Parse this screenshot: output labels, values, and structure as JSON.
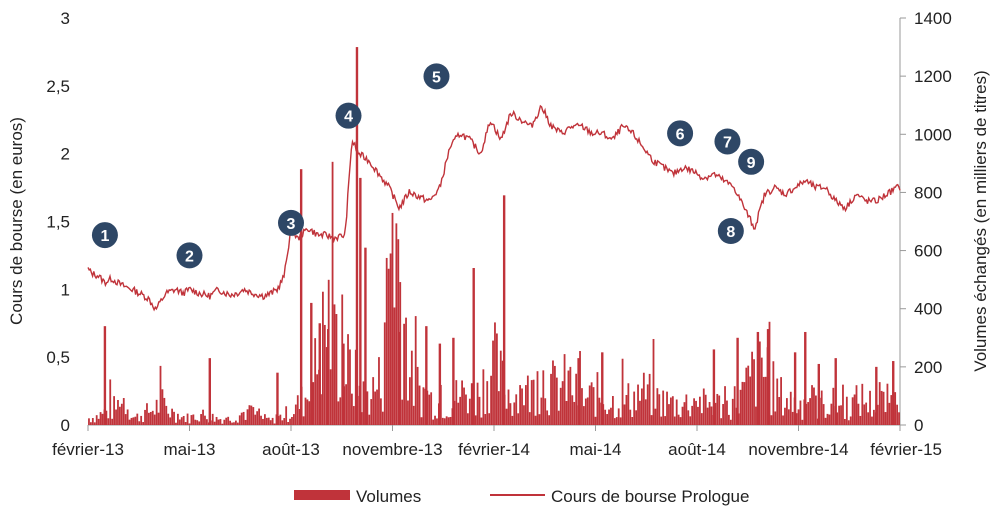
{
  "chart_data": {
    "type": "bar+line",
    "colors": {
      "series": "#c0333a",
      "marker": "#2e4766",
      "axis": "#999999"
    },
    "left_axis": {
      "label": "Cours de bourse (en euros)",
      "ylim": [
        0,
        3
      ],
      "ticks": [
        "0",
        "0,5",
        "1",
        "1,5",
        "2",
        "2,5",
        "3"
      ]
    },
    "right_axis": {
      "label": "Volumes échangés (en milliers de titres)",
      "ylim": [
        0,
        1400
      ],
      "ticks": [
        "0",
        "200",
        "400",
        "600",
        "800",
        "1000",
        "1200",
        "1400"
      ]
    },
    "x_axis": {
      "ticks": [
        "février-13",
        "mai-13",
        "août-13",
        "novembre-13",
        "février-14",
        "mai-14",
        "août-14",
        "novembre-14",
        "février-15"
      ]
    },
    "legend": {
      "placement": "bottom",
      "items": [
        {
          "name": "Volumes",
          "kind": "bar"
        },
        {
          "name": "Cours de bourse Prologue",
          "kind": "line"
        }
      ]
    },
    "price_series": {
      "name": "Cours de bourse Prologue",
      "x": [
        0,
        0.1,
        0.3,
        0.5,
        0.7,
        1.0,
        1.3,
        1.6,
        1.8,
        2.0,
        2.3,
        2.6,
        2.8,
        3.0,
        3.3,
        3.6,
        3.85,
        4.0,
        4.2,
        4.4,
        4.6,
        4.9,
        5.2,
        5.4,
        5.6,
        5.8,
        6.0,
        6.2,
        6.5,
        6.8,
        7.0,
        7.3,
        7.6,
        7.8,
        8.0,
        8.3,
        8.6,
        8.9,
        9.2,
        9.5,
        9.8,
        10.1,
        10.4,
        10.7,
        11.0,
        11.3,
        11.6,
        11.9,
        12.2,
        12.5,
        12.8,
        13.1,
        13.4,
        13.7,
        14.0,
        14.3,
        14.6,
        14.9,
        15.2,
        15.5,
        15.8,
        16.1,
        16.4,
        16.7,
        17.0,
        17.3,
        17.6,
        17.9,
        18.2,
        18.5,
        18.8,
        19.1,
        19.4,
        19.7,
        20.0,
        20.3,
        20.6,
        20.9,
        21.2,
        21.5,
        21.8,
        22.1,
        22.4,
        22.7,
        23.0,
        23.3,
        23.6,
        23.9,
        24.0
      ],
      "values": [
        1.15,
        1.12,
        1.1,
        1.05,
        1.08,
        1.03,
        1.0,
        0.96,
        0.93,
        0.85,
        0.97,
        1.0,
        0.97,
        1.0,
        0.97,
        0.95,
        1.0,
        0.98,
        0.96,
        0.97,
        1.0,
        0.97,
        0.95,
        0.97,
        1.0,
        1.1,
        1.45,
        1.37,
        1.45,
        1.4,
        1.4,
        1.38,
        1.4,
        2.1,
        2.0,
        1.95,
        1.85,
        1.75,
        1.6,
        1.72,
        1.68,
        1.65,
        1.75,
        2.05,
        2.15,
        2.1,
        2.0,
        2.25,
        2.1,
        2.3,
        2.25,
        2.2,
        2.35,
        2.2,
        2.15,
        2.2,
        2.2,
        2.15,
        2.15,
        2.1,
        2.2,
        2.15,
        2.05,
        1.95,
        1.9,
        1.85,
        1.9,
        1.87,
        1.82,
        1.85,
        1.8,
        1.75,
        1.6,
        1.45,
        1.7,
        1.75,
        1.7,
        1.75,
        1.8,
        1.75,
        1.75,
        1.65,
        1.6,
        1.7,
        1.65,
        1.65,
        1.7,
        1.75,
        1.75
      ]
    },
    "volume_series": {
      "name": "Volumes",
      "base": [
        30,
        40,
        60,
        80,
        120,
        30,
        50,
        70,
        100,
        60,
        40,
        30,
        50,
        40,
        30,
        25,
        40,
        60,
        50,
        30,
        20,
        40,
        60,
        100,
        150,
        300,
        500,
        330,
        260,
        200,
        120,
        160,
        220,
        1000,
        600,
        200,
        160,
        120,
        100,
        90,
        130,
        150,
        120,
        200,
        280,
        180,
        120,
        160,
        140,
        230,
        180,
        160,
        200,
        130,
        110,
        140,
        120,
        100,
        110,
        120,
        150,
        130,
        110,
        100,
        90,
        100,
        110,
        90,
        100,
        80,
        110,
        140,
        220,
        260,
        180,
        130,
        110,
        90,
        110,
        100,
        90,
        100,
        80,
        100,
        120,
        90,
        100,
        110,
        100
      ],
      "spikes": [
        {
          "x": 0.5,
          "value": 340
        },
        {
          "x": 3.6,
          "value": 230
        },
        {
          "x": 5.6,
          "value": 180
        },
        {
          "x": 6.3,
          "value": 880
        },
        {
          "x": 6.6,
          "value": 420
        },
        {
          "x": 6.85,
          "value": 350
        },
        {
          "x": 7.1,
          "value": 330
        },
        {
          "x": 7.55,
          "value": 280
        },
        {
          "x": 7.95,
          "value": 1300
        },
        {
          "x": 8.05,
          "value": 850
        },
        {
          "x": 8.2,
          "value": 610
        },
        {
          "x": 9.2,
          "value": 320
        },
        {
          "x": 10.0,
          "value": 340
        },
        {
          "x": 10.4,
          "value": 280
        },
        {
          "x": 10.8,
          "value": 300
        },
        {
          "x": 11.4,
          "value": 540
        },
        {
          "x": 12.3,
          "value": 790
        },
        {
          "x": 14.5,
          "value": 230
        },
        {
          "x": 15.2,
          "value": 250
        },
        {
          "x": 18.5,
          "value": 260
        },
        {
          "x": 19.2,
          "value": 300
        },
        {
          "x": 19.8,
          "value": 320
        },
        {
          "x": 20.1,
          "value": 330
        },
        {
          "x": 20.9,
          "value": 250
        },
        {
          "x": 21.2,
          "value": 320
        },
        {
          "x": 21.6,
          "value": 210
        },
        {
          "x": 22.1,
          "value": 230
        },
        {
          "x": 23.3,
          "value": 200
        },
        {
          "x": 23.8,
          "value": 220
        }
      ]
    },
    "annotations": [
      {
        "label": "1",
        "x": 0.5,
        "y": 1.4
      },
      {
        "label": "2",
        "x": 3.0,
        "y": 1.25
      },
      {
        "label": "3",
        "x": 6.0,
        "y": 1.49
      },
      {
        "label": "4",
        "x": 7.7,
        "y": 2.28
      },
      {
        "label": "5",
        "x": 10.3,
        "y": 2.57
      },
      {
        "label": "6",
        "x": 17.5,
        "y": 2.15
      },
      {
        "label": "7",
        "x": 18.9,
        "y": 2.09
      },
      {
        "label": "8",
        "x": 19.0,
        "y": 1.43
      },
      {
        "label": "9",
        "x": 19.6,
        "y": 1.94
      }
    ]
  }
}
